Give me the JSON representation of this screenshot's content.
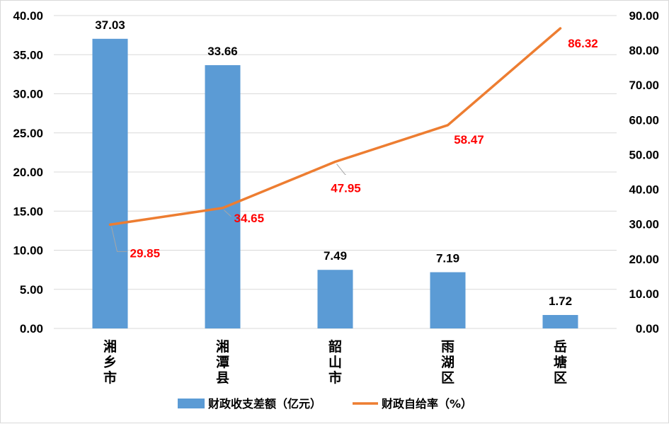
{
  "chart_data": {
    "type": "bar+line",
    "categories": [
      "湘乡市",
      "湘潭县",
      "韶山市",
      "雨湖区",
      "岳塘区"
    ],
    "series": [
      {
        "name": "财政收支差额（亿元）",
        "type": "bar",
        "axis": "left",
        "color": "#5b9bd5",
        "values": [
          37.03,
          33.66,
          7.49,
          7.19,
          1.72
        ],
        "labels": [
          "37.03",
          "33.66",
          "7.49",
          "7.19",
          "1.72"
        ]
      },
      {
        "name": "财政自给率（%）",
        "type": "line",
        "axis": "right",
        "color": "#ed7d31",
        "values": [
          29.85,
          34.65,
          47.95,
          58.47,
          86.32
        ],
        "labels": [
          "29.85",
          "34.65",
          "47.95",
          "58.47",
          "86.32"
        ]
      }
    ],
    "y_left": {
      "min": 0,
      "max": 40,
      "ticks": [
        "0.00",
        "5.00",
        "10.00",
        "15.00",
        "20.00",
        "25.00",
        "30.00",
        "35.00",
        "40.00"
      ]
    },
    "y_right": {
      "min": 0,
      "max": 90,
      "ticks": [
        "0.00",
        "10.00",
        "20.00",
        "30.00",
        "40.00",
        "50.00",
        "60.00",
        "70.00",
        "80.00",
        "90.00"
      ]
    },
    "grid": true,
    "legend_position": "bottom",
    "label_color_line": "#ff0000"
  }
}
